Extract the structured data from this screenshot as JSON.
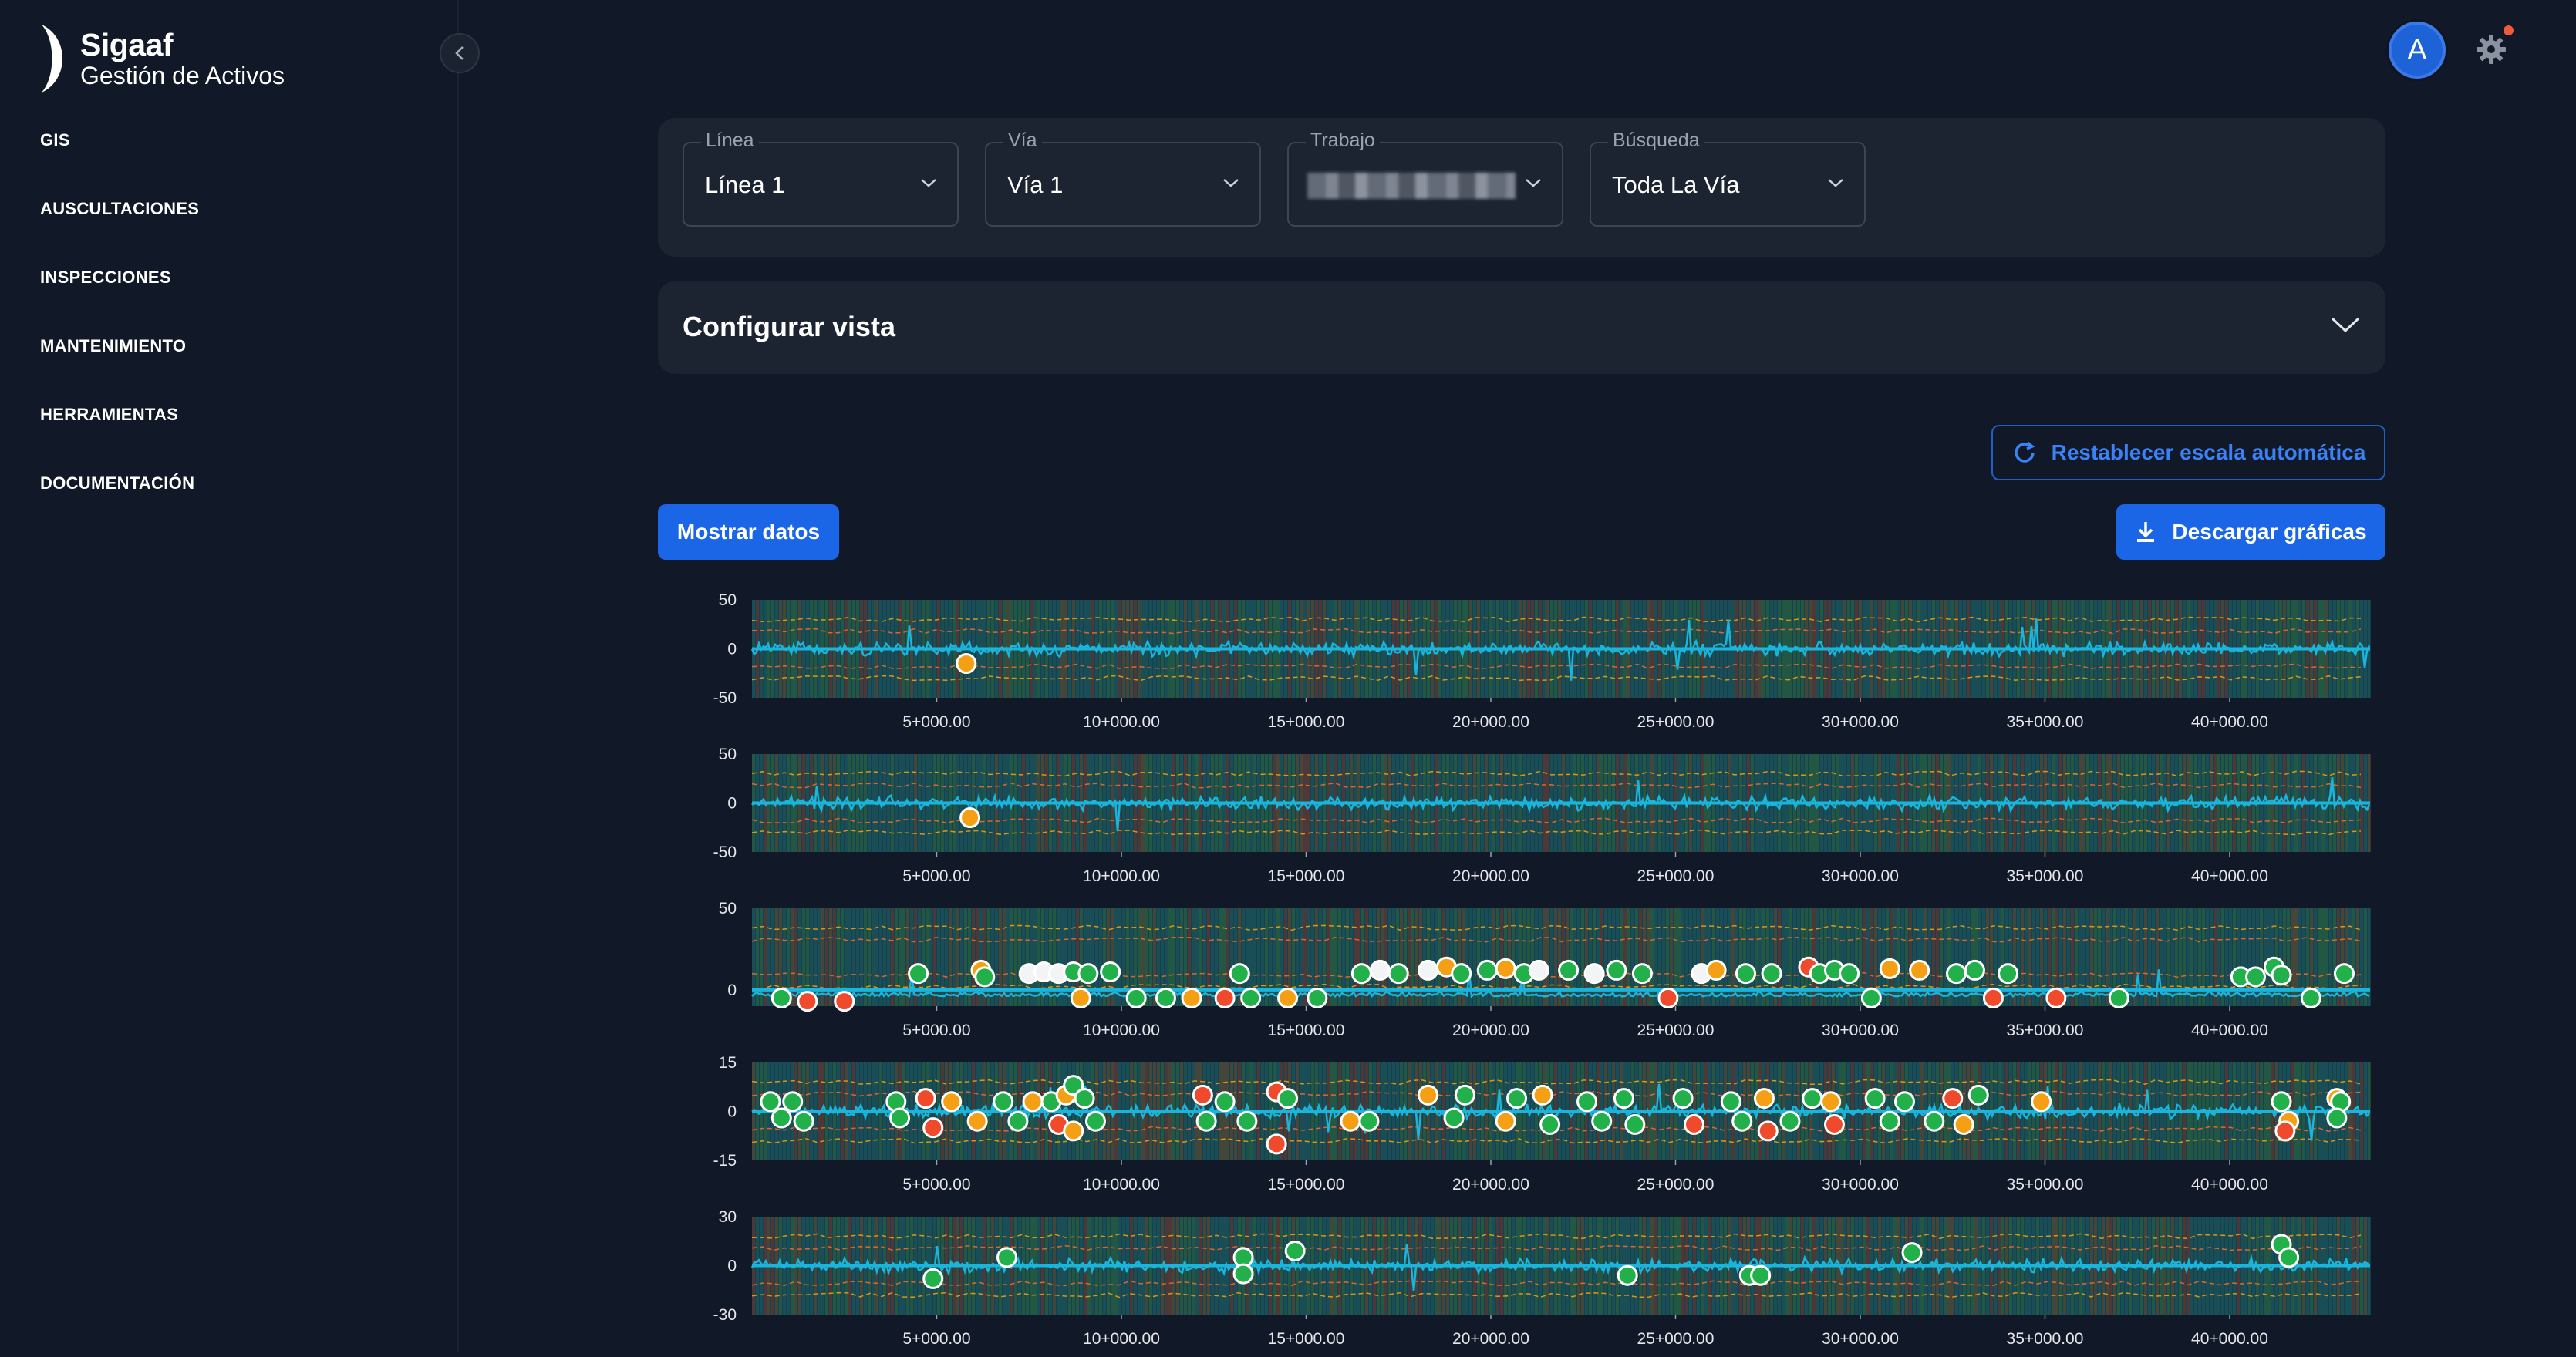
{
  "app": {
    "title": "Sigaaf",
    "subtitle": "Gestión de Activos"
  },
  "sidebar": {
    "items": [
      {
        "label": "GIS"
      },
      {
        "label": "AUSCULTACIONES"
      },
      {
        "label": "INSPECCIONES"
      },
      {
        "label": "MANTENIMIENTO"
      },
      {
        "label": "HERRAMIENTAS"
      },
      {
        "label": "DOCUMENTACIÓN"
      }
    ]
  },
  "header": {
    "avatar_letter": "A",
    "avatar_color": "#1d62d6",
    "notification_color": "#ef5a3a"
  },
  "filters": {
    "linea": {
      "label": "Línea",
      "value": "Línea 1"
    },
    "via": {
      "label": "Vía",
      "value": "Vía 1"
    },
    "trabajo": {
      "label": "Trabajo",
      "value": ""
    },
    "busqueda": {
      "label": "Búsqueda",
      "value": "Toda La Vía"
    }
  },
  "config": {
    "title": "Configurar vista"
  },
  "actions": {
    "reset_label": "Restablecer escala automática",
    "show_data_label": "Mostrar datos",
    "download_label": "Descargar gráficas"
  },
  "chart_data": [
    {
      "type": "line",
      "ylim": [
        -50,
        50
      ],
      "yticks": [
        "50",
        "0",
        "-50"
      ],
      "xticks": [
        "5+000.00",
        "10+000.00",
        "15+000.00",
        "20+000.00",
        "25+000.00",
        "30+000.00",
        "35+000.00",
        "40+000.00"
      ],
      "xrange": [
        0,
        43800
      ],
      "grid": true,
      "markers": [
        {
          "x": 5800,
          "y": -15,
          "status": "warning"
        }
      ]
    },
    {
      "type": "line",
      "ylim": [
        -50,
        50
      ],
      "yticks": [
        "50",
        "0",
        "-50"
      ],
      "xticks": [
        "5+000.00",
        "10+000.00",
        "15+000.00",
        "20+000.00",
        "25+000.00",
        "30+000.00",
        "35+000.00",
        "40+000.00"
      ],
      "xrange": [
        0,
        43800
      ],
      "grid": true,
      "markers": [
        {
          "x": 5900,
          "y": -15,
          "status": "warning"
        }
      ]
    },
    {
      "type": "line",
      "ylim": [
        -10,
        50
      ],
      "yticks": [
        "50",
        "0"
      ],
      "xticks": [
        "5+000.00",
        "10+000.00",
        "15+000.00",
        "20+000.00",
        "25+000.00",
        "30+000.00",
        "35+000.00",
        "40+000.00"
      ],
      "xrange": [
        0,
        43800
      ],
      "grid": true,
      "markers": [
        {
          "x": 800,
          "y": -5,
          "status": "ok"
        },
        {
          "x": 1500,
          "y": -7,
          "status": "alert"
        },
        {
          "x": 2500,
          "y": -7,
          "status": "alert"
        },
        {
          "x": 4500,
          "y": 10,
          "status": "ok"
        },
        {
          "x": 6200,
          "y": 12,
          "status": "warning"
        },
        {
          "x": 6300,
          "y": 8,
          "status": "ok"
        },
        {
          "x": 7500,
          "y": 10,
          "status": "neutral"
        },
        {
          "x": 7900,
          "y": 11,
          "status": "neutral"
        },
        {
          "x": 8300,
          "y": 10,
          "status": "neutral"
        },
        {
          "x": 8700,
          "y": 11,
          "status": "ok"
        },
        {
          "x": 9100,
          "y": 10,
          "status": "ok"
        },
        {
          "x": 8900,
          "y": -5,
          "status": "warning"
        },
        {
          "x": 9700,
          "y": 11,
          "status": "ok"
        },
        {
          "x": 10400,
          "y": -5,
          "status": "ok"
        },
        {
          "x": 11200,
          "y": -5,
          "status": "ok"
        },
        {
          "x": 11900,
          "y": -5,
          "status": "warning"
        },
        {
          "x": 12800,
          "y": -5,
          "status": "alert"
        },
        {
          "x": 13200,
          "y": 10,
          "status": "ok"
        },
        {
          "x": 13500,
          "y": -5,
          "status": "ok"
        },
        {
          "x": 14500,
          "y": -5,
          "status": "warning"
        },
        {
          "x": 15300,
          "y": -5,
          "status": "ok"
        },
        {
          "x": 16500,
          "y": 10,
          "status": "ok"
        },
        {
          "x": 17000,
          "y": 12,
          "status": "neutral"
        },
        {
          "x": 17500,
          "y": 10,
          "status": "ok"
        },
        {
          "x": 18300,
          "y": 12,
          "status": "neutral"
        },
        {
          "x": 18800,
          "y": 14,
          "status": "warning"
        },
        {
          "x": 19200,
          "y": 10,
          "status": "ok"
        },
        {
          "x": 19900,
          "y": 12,
          "status": "ok"
        },
        {
          "x": 20400,
          "y": 13,
          "status": "warning"
        },
        {
          "x": 20900,
          "y": 10,
          "status": "ok"
        },
        {
          "x": 21300,
          "y": 12,
          "status": "neutral"
        },
        {
          "x": 22100,
          "y": 12,
          "status": "ok"
        },
        {
          "x": 22800,
          "y": 10,
          "status": "neutral"
        },
        {
          "x": 23400,
          "y": 12,
          "status": "ok"
        },
        {
          "x": 24100,
          "y": 10,
          "status": "ok"
        },
        {
          "x": 24800,
          "y": -5,
          "status": "alert"
        },
        {
          "x": 25700,
          "y": 10,
          "status": "neutral"
        },
        {
          "x": 26100,
          "y": 12,
          "status": "warning"
        },
        {
          "x": 26900,
          "y": 10,
          "status": "ok"
        },
        {
          "x": 27600,
          "y": 10,
          "status": "ok"
        },
        {
          "x": 28600,
          "y": 14,
          "status": "alert"
        },
        {
          "x": 28900,
          "y": 10,
          "status": "ok"
        },
        {
          "x": 29300,
          "y": 12,
          "status": "ok"
        },
        {
          "x": 29700,
          "y": 10,
          "status": "ok"
        },
        {
          "x": 30300,
          "y": -5,
          "status": "ok"
        },
        {
          "x": 30800,
          "y": 13,
          "status": "warning"
        },
        {
          "x": 31600,
          "y": 12,
          "status": "warning"
        },
        {
          "x": 32600,
          "y": 10,
          "status": "ok"
        },
        {
          "x": 33100,
          "y": 12,
          "status": "ok"
        },
        {
          "x": 33600,
          "y": -5,
          "status": "alert"
        },
        {
          "x": 34000,
          "y": 10,
          "status": "ok"
        },
        {
          "x": 35300,
          "y": -5,
          "status": "alert"
        },
        {
          "x": 37000,
          "y": -5,
          "status": "ok"
        },
        {
          "x": 40300,
          "y": 8,
          "status": "ok"
        },
        {
          "x": 40700,
          "y": 8,
          "status": "ok"
        },
        {
          "x": 41200,
          "y": 14,
          "status": "ok"
        },
        {
          "x": 41400,
          "y": 9,
          "status": "ok"
        },
        {
          "x": 42200,
          "y": -5,
          "status": "ok"
        },
        {
          "x": 43100,
          "y": 10,
          "status": "ok"
        }
      ]
    },
    {
      "type": "line",
      "ylim": [
        -15,
        15
      ],
      "yticks": [
        "15",
        "0",
        "-15"
      ],
      "xticks": [
        "5+000.00",
        "10+000.00",
        "15+000.00",
        "20+000.00",
        "25+000.00",
        "30+000.00",
        "35+000.00",
        "40+000.00"
      ],
      "xrange": [
        0,
        43800
      ],
      "grid": true,
      "markers": [
        {
          "x": 500,
          "y": 3,
          "status": "ok"
        },
        {
          "x": 800,
          "y": -2,
          "status": "ok"
        },
        {
          "x": 1100,
          "y": 3,
          "status": "ok"
        },
        {
          "x": 1400,
          "y": -3,
          "status": "ok"
        },
        {
          "x": 3900,
          "y": 3,
          "status": "ok"
        },
        {
          "x": 4000,
          "y": -2,
          "status": "ok"
        },
        {
          "x": 4700,
          "y": 4,
          "status": "alert"
        },
        {
          "x": 4900,
          "y": -5,
          "status": "alert"
        },
        {
          "x": 5400,
          "y": 3,
          "status": "warning"
        },
        {
          "x": 6100,
          "y": -3,
          "status": "warning"
        },
        {
          "x": 6800,
          "y": 3,
          "status": "ok"
        },
        {
          "x": 7200,
          "y": -3,
          "status": "ok"
        },
        {
          "x": 7600,
          "y": 3,
          "status": "warning"
        },
        {
          "x": 8100,
          "y": 3,
          "status": "ok"
        },
        {
          "x": 8500,
          "y": 5,
          "status": "warning"
        },
        {
          "x": 8700,
          "y": 8,
          "status": "ok"
        },
        {
          "x": 9000,
          "y": 4,
          "status": "ok"
        },
        {
          "x": 9300,
          "y": -3,
          "status": "ok"
        },
        {
          "x": 8300,
          "y": -4,
          "status": "alert"
        },
        {
          "x": 8700,
          "y": -6,
          "status": "warning"
        },
        {
          "x": 12200,
          "y": 5,
          "status": "alert"
        },
        {
          "x": 12300,
          "y": -3,
          "status": "ok"
        },
        {
          "x": 12800,
          "y": 3,
          "status": "ok"
        },
        {
          "x": 13400,
          "y": -3,
          "status": "ok"
        },
        {
          "x": 14200,
          "y": 6,
          "status": "alert"
        },
        {
          "x": 14500,
          "y": 4,
          "status": "ok"
        },
        {
          "x": 14200,
          "y": -10,
          "status": "alert"
        },
        {
          "x": 16200,
          "y": -3,
          "status": "warning"
        },
        {
          "x": 16700,
          "y": -3,
          "status": "ok"
        },
        {
          "x": 18300,
          "y": 5,
          "status": "warning"
        },
        {
          "x": 19000,
          "y": -2,
          "status": "ok"
        },
        {
          "x": 19300,
          "y": 5,
          "status": "ok"
        },
        {
          "x": 20400,
          "y": -3,
          "status": "warning"
        },
        {
          "x": 20700,
          "y": 4,
          "status": "ok"
        },
        {
          "x": 21400,
          "y": 5,
          "status": "warning"
        },
        {
          "x": 21600,
          "y": -4,
          "status": "ok"
        },
        {
          "x": 22600,
          "y": 3,
          "status": "ok"
        },
        {
          "x": 23000,
          "y": -3,
          "status": "ok"
        },
        {
          "x": 23600,
          "y": 4,
          "status": "ok"
        },
        {
          "x": 23900,
          "y": -4,
          "status": "ok"
        },
        {
          "x": 25200,
          "y": 4,
          "status": "ok"
        },
        {
          "x": 25500,
          "y": -4,
          "status": "alert"
        },
        {
          "x": 26500,
          "y": 3,
          "status": "ok"
        },
        {
          "x": 26800,
          "y": -3,
          "status": "ok"
        },
        {
          "x": 27400,
          "y": 4,
          "status": "warning"
        },
        {
          "x": 27500,
          "y": -6,
          "status": "alert"
        },
        {
          "x": 28100,
          "y": -3,
          "status": "ok"
        },
        {
          "x": 28700,
          "y": 4,
          "status": "ok"
        },
        {
          "x": 29200,
          "y": 3,
          "status": "warning"
        },
        {
          "x": 29300,
          "y": -4,
          "status": "alert"
        },
        {
          "x": 30400,
          "y": 4,
          "status": "ok"
        },
        {
          "x": 30800,
          "y": -3,
          "status": "ok"
        },
        {
          "x": 31200,
          "y": 3,
          "status": "ok"
        },
        {
          "x": 32000,
          "y": -3,
          "status": "ok"
        },
        {
          "x": 32500,
          "y": 4,
          "status": "alert"
        },
        {
          "x": 32800,
          "y": -4,
          "status": "warning"
        },
        {
          "x": 33200,
          "y": 5,
          "status": "ok"
        },
        {
          "x": 34900,
          "y": 3,
          "status": "warning"
        },
        {
          "x": 41400,
          "y": 3,
          "status": "ok"
        },
        {
          "x": 41600,
          "y": -3,
          "status": "warning"
        },
        {
          "x": 41500,
          "y": -6,
          "status": "alert"
        },
        {
          "x": 42900,
          "y": 4,
          "status": "warning"
        },
        {
          "x": 43000,
          "y": 3,
          "status": "ok"
        },
        {
          "x": 42900,
          "y": -2,
          "status": "ok"
        }
      ]
    },
    {
      "type": "line",
      "ylim": [
        -30,
        30
      ],
      "yticks": [
        "30",
        "0",
        "-30"
      ],
      "xticks": [
        "5+000.00",
        "10+000.00",
        "15+000.00",
        "20+000.00",
        "25+000.00",
        "30+000.00",
        "35+000.00",
        "40+000.00"
      ],
      "xrange": [
        0,
        43800
      ],
      "grid": true,
      "markers": [
        {
          "x": 4900,
          "y": -8,
          "status": "ok"
        },
        {
          "x": 6900,
          "y": 5,
          "status": "ok"
        },
        {
          "x": 13300,
          "y": 5,
          "status": "ok"
        },
        {
          "x": 13300,
          "y": -5,
          "status": "ok"
        },
        {
          "x": 14700,
          "y": 9,
          "status": "ok"
        },
        {
          "x": 23700,
          "y": -6,
          "status": "ok"
        },
        {
          "x": 27000,
          "y": -6,
          "status": "ok"
        },
        {
          "x": 27300,
          "y": -6,
          "status": "ok"
        },
        {
          "x": 31400,
          "y": 8,
          "status": "ok"
        },
        {
          "x": 41400,
          "y": 13,
          "status": "ok"
        },
        {
          "x": 41600,
          "y": 5,
          "status": "ok"
        }
      ]
    }
  ]
}
